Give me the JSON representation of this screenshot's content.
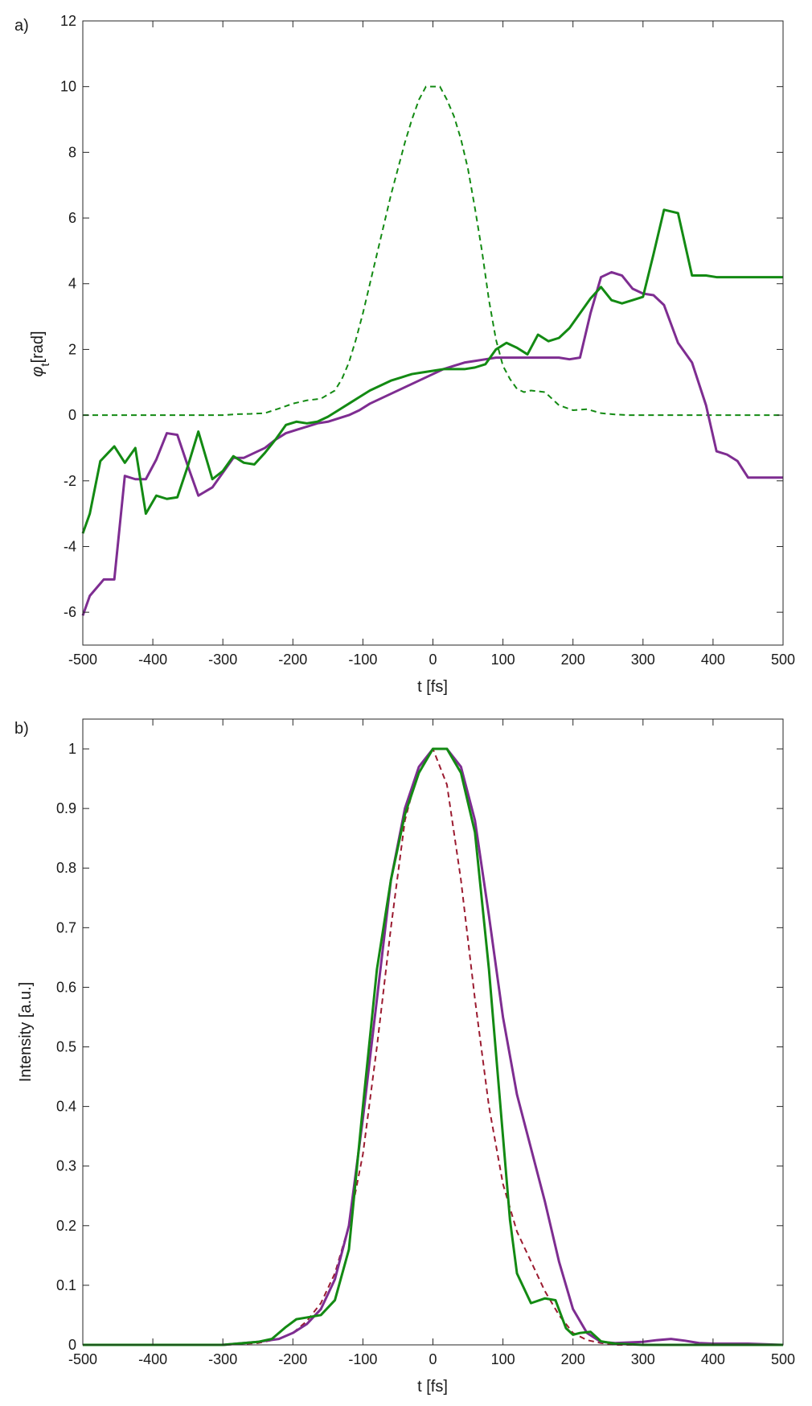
{
  "chart_data": [
    {
      "type": "line",
      "panel_label": "a)",
      "xlabel": "t [fs]",
      "ylabel_symbol": "φ",
      "ylabel_subscript": "t",
      "ylabel_unit": "[rad]",
      "xlim": [
        -500,
        500
      ],
      "ylim": [
        -7,
        12
      ],
      "xticks": [
        -500,
        -400,
        -300,
        -200,
        -100,
        0,
        100,
        200,
        300,
        400,
        500
      ],
      "yticks": [
        -6,
        -4,
        -2,
        0,
        2,
        4,
        6,
        8,
        10,
        12
      ],
      "grid": false,
      "series": [
        {
          "name": "dashed green",
          "color": "#138a13",
          "dashed": true,
          "x": [
            -500,
            -480,
            -460,
            -440,
            -420,
            -400,
            -380,
            -360,
            -340,
            -320,
            -300,
            -280,
            -260,
            -240,
            -220,
            -200,
            -180,
            -160,
            -140,
            -130,
            -120,
            -110,
            -100,
            -90,
            -80,
            -70,
            -60,
            -50,
            -40,
            -30,
            -20,
            -10,
            0,
            10,
            20,
            30,
            40,
            50,
            60,
            70,
            80,
            90,
            100,
            110,
            120,
            130,
            140,
            160,
            180,
            200,
            220,
            240,
            260,
            280,
            300,
            320,
            340,
            360,
            380,
            400,
            420,
            440,
            460,
            480,
            500
          ],
          "y": [
            0,
            0,
            0,
            0,
            0,
            0,
            0,
            0,
            0,
            0,
            0,
            0.03,
            0.04,
            0.06,
            0.2,
            0.35,
            0.45,
            0.5,
            0.75,
            1.1,
            1.6,
            2.3,
            3.1,
            4.0,
            4.9,
            5.8,
            6.7,
            7.5,
            8.3,
            9.0,
            9.6,
            10.0,
            10.0,
            10.0,
            9.6,
            9.1,
            8.4,
            7.5,
            6.3,
            5.0,
            3.5,
            2.3,
            1.5,
            1.1,
            0.8,
            0.7,
            0.75,
            0.7,
            0.3,
            0.15,
            0.18,
            0.06,
            0.02,
            0,
            0,
            0,
            0,
            0,
            0,
            0,
            0,
            0,
            0,
            0,
            0
          ]
        },
        {
          "name": "purple",
          "color": "#7e2d91",
          "dashed": false,
          "x": [
            -500,
            -490,
            -470,
            -455,
            -440,
            -425,
            -410,
            -395,
            -380,
            -365,
            -350,
            -335,
            -315,
            -300,
            -285,
            -270,
            -255,
            -240,
            -225,
            -210,
            -195,
            -180,
            -165,
            -150,
            -135,
            -120,
            -105,
            -90,
            -75,
            -60,
            -45,
            -30,
            -15,
            0,
            15,
            30,
            45,
            60,
            75,
            90,
            105,
            120,
            135,
            150,
            165,
            180,
            195,
            210,
            225,
            240,
            255,
            270,
            285,
            300,
            315,
            330,
            350,
            370,
            390,
            405,
            420,
            435,
            450,
            465,
            480,
            495,
            500
          ],
          "y": [
            -6.1,
            -5.5,
            -5.0,
            -5.0,
            -1.85,
            -1.95,
            -1.95,
            -1.35,
            -0.55,
            -0.6,
            -1.55,
            -2.45,
            -2.2,
            -1.75,
            -1.3,
            -1.3,
            -1.15,
            -1.0,
            -0.75,
            -0.55,
            -0.45,
            -0.35,
            -0.25,
            -0.2,
            -0.1,
            0.0,
            0.15,
            0.35,
            0.5,
            0.65,
            0.8,
            0.95,
            1.1,
            1.25,
            1.4,
            1.5,
            1.6,
            1.65,
            1.7,
            1.75,
            1.75,
            1.75,
            1.75,
            1.75,
            1.75,
            1.75,
            1.7,
            1.75,
            3.1,
            4.2,
            4.35,
            4.25,
            3.85,
            3.7,
            3.65,
            3.35,
            2.2,
            1.6,
            0.3,
            -1.1,
            -1.2,
            -1.4,
            -1.9,
            -1.9,
            -1.9,
            -1.9,
            -1.9
          ]
        },
        {
          "name": "green",
          "color": "#138a13",
          "dashed": false,
          "x": [
            -500,
            -490,
            -475,
            -455,
            -440,
            -425,
            -410,
            -395,
            -380,
            -365,
            -350,
            -335,
            -315,
            -300,
            -285,
            -270,
            -255,
            -240,
            -225,
            -210,
            -195,
            -180,
            -165,
            -150,
            -135,
            -120,
            -105,
            -90,
            -75,
            -60,
            -45,
            -30,
            -15,
            0,
            15,
            30,
            45,
            60,
            75,
            90,
            105,
            120,
            135,
            150,
            165,
            180,
            195,
            210,
            225,
            240,
            255,
            270,
            285,
            300,
            315,
            330,
            350,
            370,
            390,
            405,
            420,
            435,
            450,
            465,
            480,
            500
          ],
          "y": [
            -3.6,
            -3.0,
            -1.4,
            -0.95,
            -1.45,
            -1.0,
            -3.0,
            -2.45,
            -2.55,
            -2.5,
            -1.55,
            -0.5,
            -1.95,
            -1.7,
            -1.25,
            -1.45,
            -1.5,
            -1.15,
            -0.75,
            -0.3,
            -0.2,
            -0.25,
            -0.2,
            -0.05,
            0.15,
            0.35,
            0.55,
            0.75,
            0.9,
            1.05,
            1.15,
            1.25,
            1.3,
            1.35,
            1.4,
            1.4,
            1.4,
            1.45,
            1.55,
            2.0,
            2.2,
            2.05,
            1.85,
            2.45,
            2.25,
            2.35,
            2.65,
            3.1,
            3.55,
            3.9,
            3.5,
            3.4,
            3.5,
            3.6,
            4.9,
            6.25,
            6.15,
            4.25,
            4.25,
            4.2,
            4.2,
            4.2,
            4.2,
            4.2,
            4.2,
            4.2
          ]
        }
      ]
    },
    {
      "type": "line",
      "panel_label": "b)",
      "xlabel": "t [fs]",
      "ylabel": "Intensity [a.u.]",
      "xlim": [
        -500,
        500
      ],
      "ylim": [
        0,
        1.05
      ],
      "xticks": [
        -500,
        -400,
        -300,
        -200,
        -100,
        0,
        100,
        200,
        300,
        400,
        500
      ],
      "yticks": [
        0,
        0.1,
        0.2,
        0.3,
        0.4,
        0.5,
        0.6,
        0.7,
        0.8,
        0.9,
        1
      ],
      "ytick_labels": [
        "0",
        "0.1",
        "0.2",
        "0.3",
        "0.4",
        "0.5",
        "0.6",
        "0.7",
        "0.8",
        "0.9",
        "1"
      ],
      "grid": false,
      "series": [
        {
          "name": "dashed red",
          "color": "#9b1b30",
          "dashed": true,
          "x": [
            -500,
            -400,
            -300,
            -250,
            -220,
            -200,
            -180,
            -160,
            -140,
            -120,
            -100,
            -80,
            -60,
            -40,
            -20,
            0,
            20,
            40,
            60,
            80,
            100,
            120,
            140,
            160,
            180,
            200,
            220,
            240,
            260,
            300,
            400,
            500
          ],
          "y": [
            0,
            0,
            0,
            0.003,
            0.01,
            0.02,
            0.04,
            0.07,
            0.12,
            0.2,
            0.32,
            0.5,
            0.7,
            0.88,
            0.97,
            1.0,
            0.94,
            0.78,
            0.58,
            0.4,
            0.27,
            0.19,
            0.14,
            0.09,
            0.05,
            0.02,
            0.008,
            0.003,
            0,
            0,
            0,
            0
          ]
        },
        {
          "name": "purple",
          "color": "#7e2d91",
          "dashed": false,
          "x": [
            -500,
            -400,
            -300,
            -250,
            -220,
            -200,
            -180,
            -160,
            -140,
            -120,
            -100,
            -80,
            -60,
            -40,
            -20,
            0,
            20,
            40,
            60,
            80,
            100,
            120,
            140,
            160,
            180,
            200,
            220,
            240,
            260,
            300,
            320,
            340,
            360,
            380,
            400,
            450,
            500
          ],
          "y": [
            0,
            0,
            0,
            0.005,
            0.01,
            0.02,
            0.035,
            0.06,
            0.11,
            0.2,
            0.38,
            0.58,
            0.78,
            0.9,
            0.97,
            1.0,
            1.0,
            0.97,
            0.88,
            0.72,
            0.55,
            0.42,
            0.33,
            0.24,
            0.14,
            0.06,
            0.02,
            0.005,
            0.003,
            0.005,
            0.008,
            0.01,
            0.007,
            0.003,
            0.002,
            0.002,
            0
          ]
        },
        {
          "name": "green",
          "color": "#138a13",
          "dashed": false,
          "x": [
            -500,
            -400,
            -300,
            -250,
            -230,
            -210,
            -195,
            -180,
            -160,
            -140,
            -120,
            -100,
            -80,
            -60,
            -40,
            -20,
            0,
            20,
            40,
            60,
            80,
            100,
            110,
            120,
            140,
            160,
            175,
            190,
            200,
            210,
            225,
            240,
            260,
            300,
            400,
            500
          ],
          "y": [
            0,
            0,
            0,
            0.005,
            0.01,
            0.03,
            0.043,
            0.046,
            0.05,
            0.075,
            0.16,
            0.4,
            0.63,
            0.78,
            0.89,
            0.96,
            1.0,
            1.0,
            0.96,
            0.86,
            0.63,
            0.35,
            0.21,
            0.12,
            0.07,
            0.078,
            0.075,
            0.028,
            0.017,
            0.02,
            0.022,
            0.006,
            0.002,
            0,
            0,
            0
          ]
        }
      ]
    }
  ]
}
